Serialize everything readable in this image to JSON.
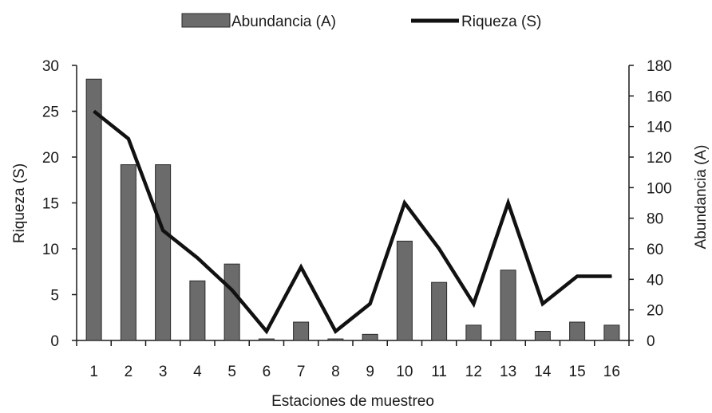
{
  "chart_data": {
    "type": "bar",
    "categories": [
      "1",
      "2",
      "3",
      "4",
      "5",
      "6",
      "7",
      "8",
      "9",
      "10",
      "11",
      "12",
      "13",
      "14",
      "15",
      "16"
    ],
    "series": [
      {
        "name": "Abundancia (A)",
        "kind": "bar",
        "axis": "right",
        "values": [
          171,
          115,
          115,
          39,
          50,
          1,
          12,
          1,
          4,
          65,
          38,
          10,
          46,
          6,
          12,
          10
        ]
      },
      {
        "name": "Riqueza (S)",
        "kind": "line",
        "axis": "left",
        "values": [
          25,
          22,
          12,
          9,
          5.5,
          1,
          8,
          1,
          4,
          15,
          10,
          4,
          15,
          4,
          7,
          7
        ]
      }
    ],
    "xlabel": "Estaciones de muestreo",
    "ylabel_left": "Riqueza (S)",
    "ylabel_right": "Abundancia (A)",
    "ylim_left": [
      0,
      30
    ],
    "yticks_left": [
      0,
      5,
      10,
      15,
      20,
      25,
      30
    ],
    "ylim_right": [
      0,
      180
    ],
    "yticks_right": [
      0,
      20,
      40,
      60,
      80,
      100,
      120,
      140,
      160,
      180
    ],
    "legend_position": "top",
    "grid": false,
    "colors": {
      "bar_fill": "#6b6b6b",
      "bar_stroke": "#2a2a2a",
      "line": "#111111",
      "axis": "#1a1a1a"
    }
  }
}
